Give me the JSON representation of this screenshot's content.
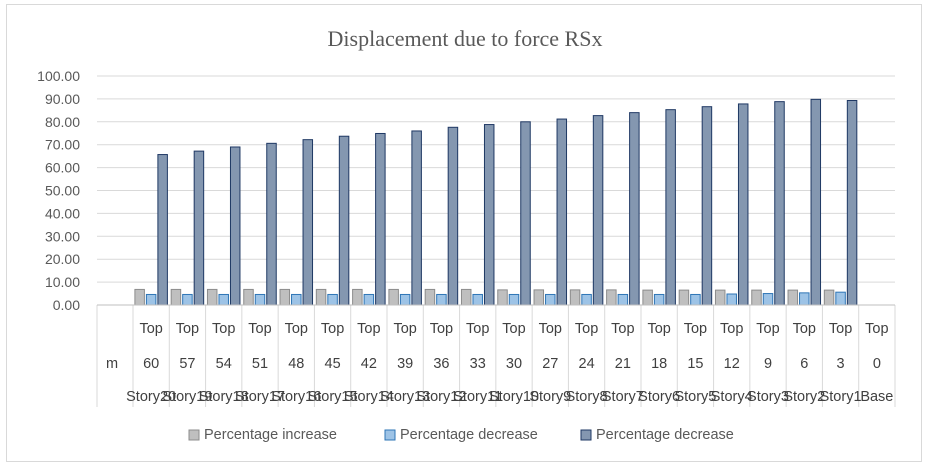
{
  "chart_data": {
    "type": "bar",
    "title": "Displacement due to force RSx",
    "xlabel": "",
    "ylabel": "",
    "ylim": [
      0,
      100
    ],
    "yticks": [
      "0.00",
      "10.00",
      "20.00",
      "30.00",
      "40.00",
      "50.00",
      "60.00",
      "70.00",
      "80.00",
      "90.00",
      "100.00"
    ],
    "unit_label": "m",
    "categories": [
      {
        "position": "Top",
        "level": "60",
        "story": "Story20"
      },
      {
        "position": "Top",
        "level": "57",
        "story": "Story19"
      },
      {
        "position": "Top",
        "level": "54",
        "story": "Story18"
      },
      {
        "position": "Top",
        "level": "51",
        "story": "Story17"
      },
      {
        "position": "Top",
        "level": "48",
        "story": "Story16"
      },
      {
        "position": "Top",
        "level": "45",
        "story": "Story15"
      },
      {
        "position": "Top",
        "level": "42",
        "story": "Story14"
      },
      {
        "position": "Top",
        "level": "39",
        "story": "Story13"
      },
      {
        "position": "Top",
        "level": "36",
        "story": "Story12"
      },
      {
        "position": "Top",
        "level": "33",
        "story": "Story11"
      },
      {
        "position": "Top",
        "level": "30",
        "story": "Story10"
      },
      {
        "position": "Top",
        "level": "27",
        "story": "Story9"
      },
      {
        "position": "Top",
        "level": "24",
        "story": "Story8"
      },
      {
        "position": "Top",
        "level": "21",
        "story": "Story7"
      },
      {
        "position": "Top",
        "level": "18",
        "story": "Story6"
      },
      {
        "position": "Top",
        "level": "15",
        "story": "Story5"
      },
      {
        "position": "Top",
        "level": "12",
        "story": "Story4"
      },
      {
        "position": "Top",
        "level": "9",
        "story": "Story3"
      },
      {
        "position": "Top",
        "level": "6",
        "story": "Story2"
      },
      {
        "position": "Top",
        "level": "3",
        "story": "Story1"
      },
      {
        "position": "Top",
        "level": "0",
        "story": "Base"
      }
    ],
    "series": [
      {
        "name": "Percentage increase",
        "color": "#bfbfbf",
        "stroke": "#8c8c8c",
        "values": [
          6.8,
          6.8,
          6.8,
          6.8,
          6.8,
          6.8,
          6.8,
          6.8,
          6.8,
          6.8,
          6.6,
          6.6,
          6.6,
          6.6,
          6.5,
          6.5,
          6.5,
          6.5,
          6.5,
          6.5,
          0
        ]
      },
      {
        "name": "Percentage decrease",
        "color": "#9dc3e6",
        "stroke": "#2e75b6",
        "values": [
          4.6,
          4.6,
          4.6,
          4.6,
          4.6,
          4.6,
          4.6,
          4.6,
          4.6,
          4.6,
          4.6,
          4.6,
          4.6,
          4.6,
          4.6,
          4.6,
          4.8,
          5.0,
          5.3,
          5.6,
          0
        ]
      },
      {
        "name": "Percentage decrease",
        "color": "#8497b0",
        "stroke": "#1f3864",
        "values": [
          65.7,
          67.2,
          69.0,
          70.6,
          72.2,
          73.7,
          74.9,
          76.0,
          77.6,
          78.8,
          80.0,
          81.2,
          82.7,
          84.0,
          85.3,
          86.6,
          87.8,
          88.8,
          89.8,
          89.3,
          0
        ]
      }
    ],
    "grid": true,
    "legend_position": "bottom"
  }
}
